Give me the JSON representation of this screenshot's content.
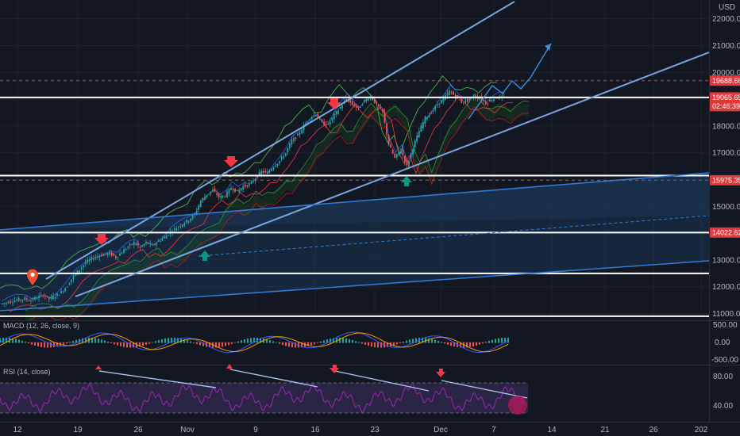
{
  "chart_data": {
    "type": "candlestick",
    "currency": "USD",
    "y_ticks": [
      11000,
      12000,
      13000,
      14000,
      15000,
      16000,
      17000,
      18000,
      19000,
      20000,
      21000,
      22000
    ],
    "y_tick_labels": [
      "11000.00",
      "12000.00",
      "13000.00",
      "14000.00",
      "15000.00",
      "16000.00",
      "17000.00",
      "18000.00",
      "19000.00",
      "20000.00",
      "21000.00",
      "22000.00"
    ],
    "ylim": [
      10750,
      22700
    ],
    "x_ticks": [
      "12",
      "19",
      "26",
      "Nov",
      "9",
      "16",
      "23",
      "Dec",
      "7",
      "14",
      "21",
      "26",
      "202"
    ],
    "price_labels": [
      {
        "text": "19688.66",
        "value": 19688.66,
        "color": "#e0383b",
        "style": "dashed"
      },
      {
        "text": "19065.65",
        "value": 19065.65,
        "color": "#e0383b",
        "style": "solid"
      },
      {
        "text": "02:46:39",
        "value": 18740,
        "color": "#e0383b",
        "style": "none"
      },
      {
        "text": "15975.35",
        "value": 15975.35,
        "color": "#e0383b",
        "style": "dashed"
      },
      {
        "text": "14022.62",
        "value": 14022.62,
        "color": "#e0383b",
        "style": "none"
      }
    ],
    "horizontal_levels": [
      19065.65,
      16150,
      14022.62,
      12500,
      10900
    ],
    "close_series": [
      11350,
      11420,
      11480,
      11520,
      11550,
      11500,
      11600,
      11700,
      11560,
      11650,
      11800,
      12050,
      12400,
      12650,
      12900,
      13050,
      13150,
      13200,
      13250,
      13100,
      13300,
      13500,
      13650,
      13450,
      13650,
      13550,
      13700,
      13850,
      14050,
      14200,
      14350,
      14500,
      14700,
      15200,
      15450,
      15600,
      15350,
      15400,
      15700,
      15550,
      15750,
      15800,
      16050,
      16300,
      16250,
      16500,
      16700,
      17000,
      17450,
      17650,
      18000,
      18300,
      18450,
      18100,
      18050,
      18400,
      18700,
      19000,
      18800,
      18650,
      18950,
      19100,
      18800,
      18500,
      17300,
      16800,
      17100,
      16500,
      17200,
      17800,
      18300,
      18500,
      18800,
      19000,
      19300,
      19100,
      18900,
      18950,
      19100,
      19050,
      18850,
      19000,
      19080,
      19050
    ],
    "indicators": [
      {
        "name": "MACD (12, 26, close, 9)",
        "y_ticks": [
          "500.00",
          "0.00",
          "-500.00"
        ]
      },
      {
        "name": "RSI (14, close)",
        "y_ticks": [
          "80.00",
          "40.00"
        ]
      }
    ]
  }
}
